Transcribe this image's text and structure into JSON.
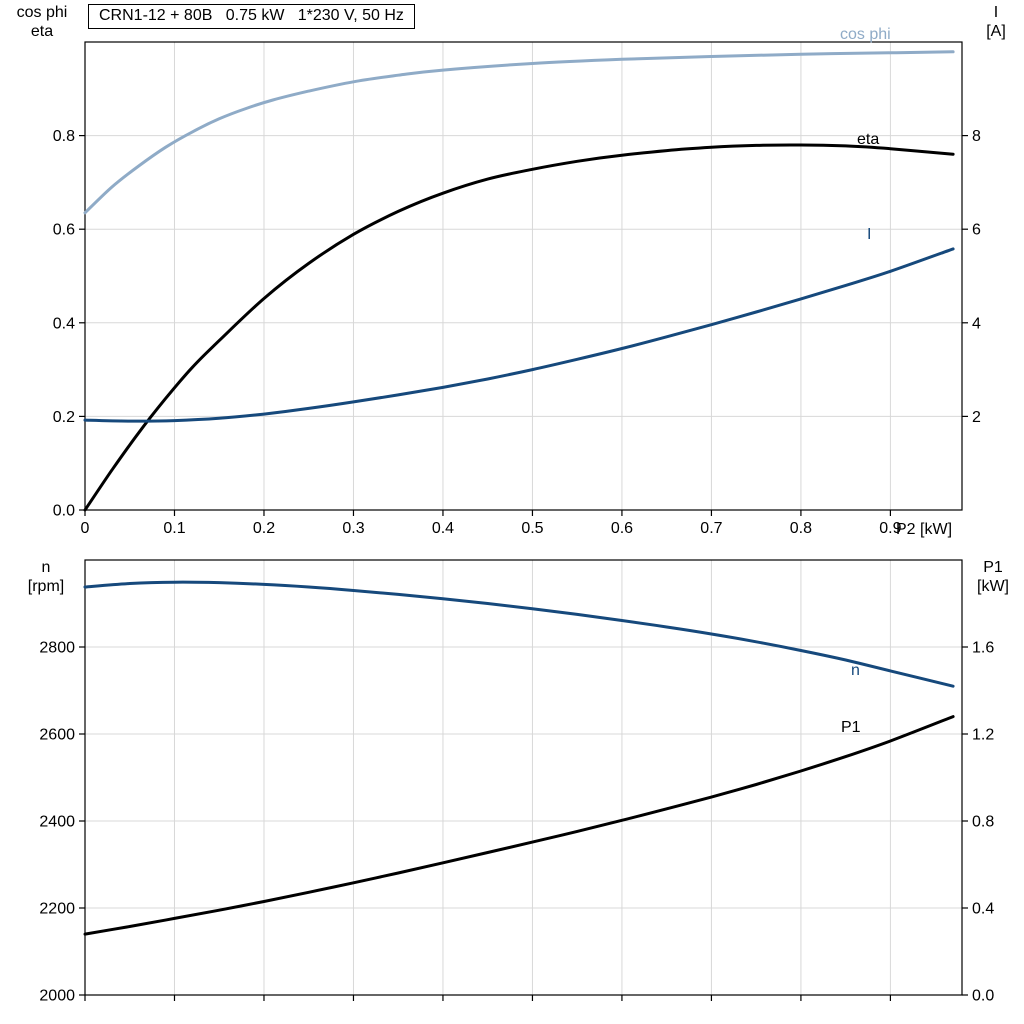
{
  "title_box": {
    "text": "CRN1-12 + 80B   0.75 kW   1*230 V, 50 Hz"
  },
  "colors": {
    "background": "#ffffff",
    "axis": "#000000",
    "grid": "#d8d8d8",
    "light_blue": "#8FABC7",
    "dark_blue": "#16497C",
    "black": "#000000"
  },
  "chart_data": [
    {
      "id": "motor-electrical",
      "type": "line",
      "grid": true,
      "x_axis": {
        "label": "P2 [kW]",
        "range": [
          0,
          0.98
        ],
        "ticks": [
          0,
          0.1,
          0.2,
          0.3,
          0.4,
          0.5,
          0.6,
          0.7,
          0.8,
          0.9
        ],
        "tick_labels": [
          "0",
          "0.1",
          "0.2",
          "0.3",
          "0.4",
          "0.5",
          "0.6",
          "0.7",
          "0.8",
          "0.9"
        ]
      },
      "left_axis": {
        "title_line1": "cos phi",
        "title_line2": "eta",
        "range": [
          0,
          1.0
        ],
        "ticks": [
          0,
          0.2,
          0.4,
          0.6,
          0.8
        ],
        "tick_labels": [
          "0.0",
          "0.2",
          "0.4",
          "0.6",
          "0.8"
        ]
      },
      "right_axis": {
        "title_line1": "I",
        "title_line2": "[A]",
        "range": [
          0,
          10
        ],
        "ticks": [
          2,
          4,
          6,
          8
        ],
        "tick_labels": [
          "2",
          "4",
          "6",
          "8"
        ]
      },
      "series": [
        {
          "name": "cos phi",
          "axis": "left",
          "color": "#8FABC7",
          "width": 3,
          "points_x": [
            0,
            0.03,
            0.06,
            0.09,
            0.12,
            0.15,
            0.18,
            0.21,
            0.25,
            0.3,
            0.35,
            0.4,
            0.5,
            0.6,
            0.7,
            0.8,
            0.9,
            0.97
          ],
          "points_y": [
            0.635,
            0.69,
            0.735,
            0.775,
            0.808,
            0.836,
            0.858,
            0.876,
            0.895,
            0.915,
            0.929,
            0.94,
            0.954,
            0.963,
            0.969,
            0.974,
            0.977,
            0.979
          ]
        },
        {
          "name": "eta",
          "axis": "left",
          "color": "#000000",
          "width": 3,
          "points_x": [
            0,
            0.03,
            0.06,
            0.09,
            0.12,
            0.15,
            0.2,
            0.25,
            0.3,
            0.35,
            0.4,
            0.45,
            0.5,
            0.55,
            0.6,
            0.65,
            0.7,
            0.75,
            0.8,
            0.85,
            0.9,
            0.97
          ],
          "points_y": [
            0,
            0.085,
            0.165,
            0.238,
            0.305,
            0.362,
            0.452,
            0.527,
            0.589,
            0.638,
            0.677,
            0.707,
            0.728,
            0.745,
            0.758,
            0.768,
            0.775,
            0.779,
            0.78,
            0.778,
            0.772,
            0.76
          ]
        },
        {
          "name": "I",
          "axis": "right",
          "color": "#16497C",
          "width": 3,
          "points_x": [
            0,
            0.05,
            0.1,
            0.15,
            0.2,
            0.25,
            0.3,
            0.35,
            0.4,
            0.45,
            0.5,
            0.55,
            0.6,
            0.65,
            0.7,
            0.75,
            0.8,
            0.85,
            0.9,
            0.97
          ],
          "points_y": [
            1.92,
            1.9,
            1.91,
            1.96,
            2.05,
            2.17,
            2.31,
            2.46,
            2.62,
            2.8,
            3.0,
            3.22,
            3.45,
            3.7,
            3.96,
            4.23,
            4.51,
            4.8,
            5.1,
            5.58
          ]
        }
      ]
    },
    {
      "id": "motor-speed-power",
      "type": "line",
      "grid": true,
      "x_axis": {
        "label": "",
        "range": [
          0,
          0.98
        ],
        "ticks": [
          0,
          0.1,
          0.2,
          0.3,
          0.4,
          0.5,
          0.6,
          0.7,
          0.8,
          0.9
        ],
        "tick_labels": []
      },
      "left_axis": {
        "title_line1": "n",
        "title_line2": "[rpm]",
        "range": [
          2000,
          3000
        ],
        "ticks": [
          2000,
          2200,
          2400,
          2600,
          2800
        ],
        "tick_labels": [
          "2000",
          "2200",
          "2400",
          "2600",
          "2800"
        ]
      },
      "right_axis": {
        "title_line1": "P1",
        "title_line2": "[kW]",
        "range": [
          0,
          2.0
        ],
        "ticks": [
          0,
          0.4,
          0.8,
          1.2,
          1.6
        ],
        "tick_labels": [
          "0.0",
          "0.4",
          "0.8",
          "1.2",
          "1.6"
        ]
      },
      "series": [
        {
          "name": "n",
          "axis": "left",
          "color": "#16497C",
          "width": 3,
          "points_x": [
            0,
            0.05,
            0.1,
            0.15,
            0.2,
            0.25,
            0.3,
            0.35,
            0.4,
            0.45,
            0.5,
            0.55,
            0.6,
            0.65,
            0.7,
            0.75,
            0.8,
            0.85,
            0.9,
            0.97
          ],
          "points_y": [
            2938,
            2946,
            2949,
            2948,
            2944,
            2938,
            2930,
            2921,
            2911,
            2900,
            2888,
            2875,
            2861,
            2846,
            2830,
            2812,
            2792,
            2770,
            2745,
            2710
          ]
        },
        {
          "name": "P1",
          "axis": "right",
          "color": "#000000",
          "width": 3,
          "points_x": [
            0,
            0.05,
            0.1,
            0.15,
            0.2,
            0.25,
            0.3,
            0.35,
            0.4,
            0.45,
            0.5,
            0.55,
            0.6,
            0.65,
            0.7,
            0.75,
            0.8,
            0.85,
            0.9,
            0.97
          ],
          "points_y": [
            0.28,
            0.315,
            0.352,
            0.39,
            0.43,
            0.472,
            0.516,
            0.561,
            0.608,
            0.655,
            0.703,
            0.752,
            0.803,
            0.856,
            0.91,
            0.968,
            1.03,
            1.096,
            1.168,
            1.28
          ]
        }
      ]
    }
  ]
}
